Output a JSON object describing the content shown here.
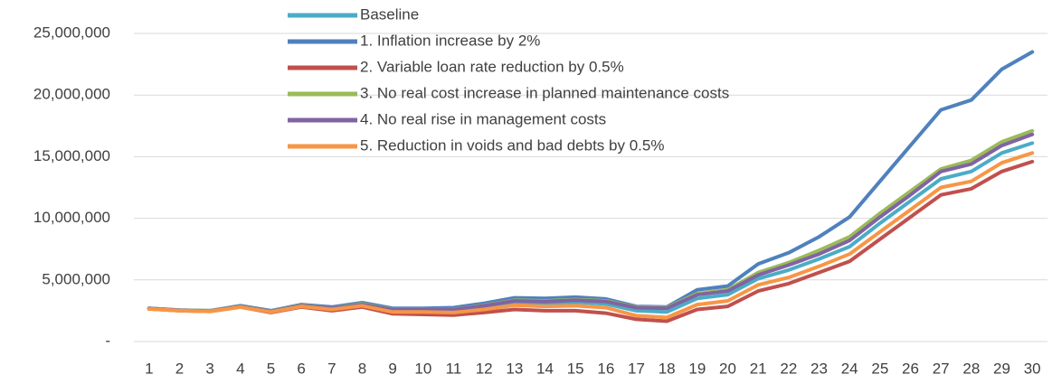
{
  "chart_data": {
    "type": "line",
    "categories": [
      "1",
      "2",
      "3",
      "4",
      "5",
      "6",
      "7",
      "8",
      "9",
      "10",
      "11",
      "12",
      "13",
      "14",
      "15",
      "16",
      "17",
      "18",
      "19",
      "20",
      "21",
      "22",
      "23",
      "24",
      "25",
      "26",
      "27",
      "28",
      "29",
      "30"
    ],
    "series": [
      {
        "name": "Baseline",
        "color": "#4bacc6",
        "values": [
          2680000,
          2530000,
          2480000,
          2830000,
          2430000,
          2900000,
          2650000,
          2980000,
          2520000,
          2520000,
          2500000,
          2800000,
          3200000,
          3100000,
          3200000,
          3050000,
          2500000,
          2400000,
          3500000,
          3800000,
          5100000,
          5800000,
          6700000,
          7700000,
          9600000,
          11400000,
          13200000,
          13800000,
          15300000,
          16100000
        ]
      },
      {
        "name": "1. Inflation increase by 2%",
        "color": "#4f81bd",
        "values": [
          2700000,
          2550000,
          2500000,
          2900000,
          2500000,
          3000000,
          2800000,
          3150000,
          2700000,
          2700000,
          2750000,
          3100000,
          3550000,
          3500000,
          3600000,
          3450000,
          2850000,
          2800000,
          4200000,
          4500000,
          6300000,
          7200000,
          8500000,
          10100000,
          13000000,
          15900000,
          18800000,
          19600000,
          22100000,
          23500000
        ]
      },
      {
        "name": "2. Variable loan rate reduction by 0.5%",
        "color": "#c0504d",
        "values": [
          2650000,
          2500000,
          2450000,
          2800000,
          2350000,
          2800000,
          2500000,
          2800000,
          2250000,
          2200000,
          2150000,
          2350000,
          2600000,
          2500000,
          2500000,
          2300000,
          1800000,
          1650000,
          2600000,
          2850000,
          4100000,
          4700000,
          5600000,
          6500000,
          8300000,
          10100000,
          11900000,
          12400000,
          13800000,
          14600000
        ]
      },
      {
        "name": "3. No real cost increase in planned maintenance costs",
        "color": "#9bbb59",
        "values": [
          2700000,
          2550000,
          2500000,
          2850000,
          2450000,
          2950000,
          2700000,
          3050000,
          2600000,
          2600000,
          2600000,
          2950000,
          3350000,
          3300000,
          3400000,
          3300000,
          2800000,
          2750000,
          3900000,
          4200000,
          5600000,
          6400000,
          7400000,
          8500000,
          10400000,
          12200000,
          14000000,
          14700000,
          16200000,
          17100000
        ]
      },
      {
        "name": "4. No real rise in management costs",
        "color": "#8064a2",
        "values": [
          2680000,
          2530000,
          2480000,
          2830000,
          2430000,
          2920000,
          2680000,
          3000000,
          2580000,
          2580000,
          2580000,
          2900000,
          3300000,
          3250000,
          3350000,
          3250000,
          2750000,
          2700000,
          3800000,
          4100000,
          5400000,
          6200000,
          7100000,
          8200000,
          10100000,
          11900000,
          13800000,
          14400000,
          15900000,
          16800000
        ]
      },
      {
        "name": "5. Reduction in voids and bad debts by 0.5%",
        "color": "#f79646",
        "values": [
          2650000,
          2500000,
          2450000,
          2800000,
          2400000,
          2850000,
          2600000,
          2900000,
          2400000,
          2400000,
          2350000,
          2600000,
          2950000,
          2850000,
          2900000,
          2750000,
          2100000,
          1950000,
          3000000,
          3300000,
          4600000,
          5200000,
          6100000,
          7100000,
          8900000,
          10700000,
          12500000,
          13000000,
          14500000,
          15300000
        ]
      }
    ],
    "ylim": [
      0,
      25000000
    ],
    "yticks": [
      {
        "value": 0,
        "label": "-"
      },
      {
        "value": 5000000,
        "label": "5,000,000"
      },
      {
        "value": 10000000,
        "label": "10,000,000"
      },
      {
        "value": 15000000,
        "label": "15,000,000"
      },
      {
        "value": 20000000,
        "label": "20,000,000"
      },
      {
        "value": 25000000,
        "label": "25,000,000"
      }
    ],
    "grid": true,
    "legend": "top"
  }
}
